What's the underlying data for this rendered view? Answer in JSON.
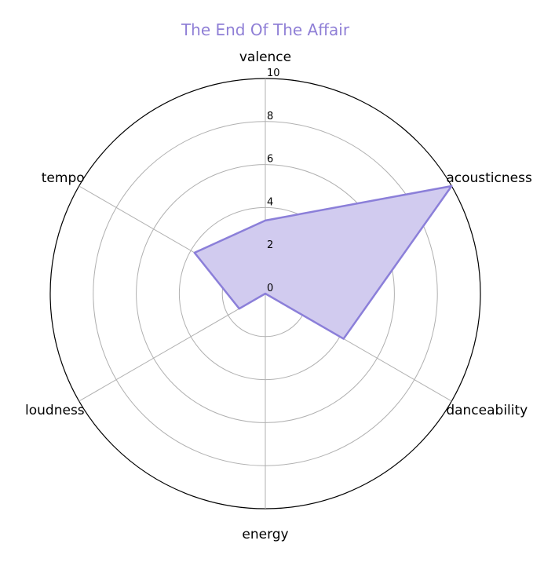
{
  "chart_data": {
    "type": "radar",
    "title": "The End Of The Affair",
    "axes": [
      "valence",
      "acousticness",
      "danceability",
      "energy",
      "loudness",
      "tempo"
    ],
    "series": [
      {
        "values": [
          3.4,
          10.0,
          4.2,
          0.0,
          1.4,
          3.8
        ]
      }
    ],
    "rlim": [
      0,
      10
    ],
    "rticks": [
      0,
      2,
      4,
      6,
      8,
      10
    ],
    "grid": true,
    "colors": {
      "line": "#8b7fd9",
      "fill": "#d1cbef",
      "title": "#8f7fd6",
      "grid": "#b0b0b0",
      "outer": "#000000"
    }
  }
}
